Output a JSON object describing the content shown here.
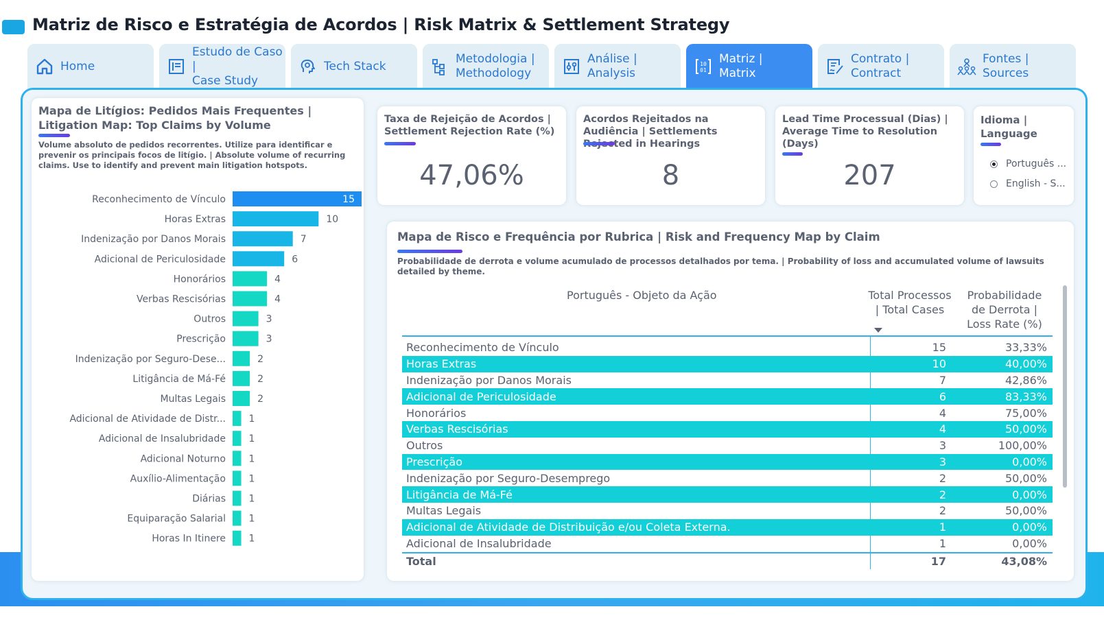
{
  "header": {
    "title": "Matriz de Risco e Estratégia de Acordos | Risk Matrix & Settlement Strategy"
  },
  "tabs": [
    {
      "label": "Home",
      "icon": "home-icon"
    },
    {
      "label": "Estudo de Caso |\nCase Study",
      "icon": "document-icon"
    },
    {
      "label": "Tech Stack",
      "icon": "brain-icon"
    },
    {
      "label": "Metodologia |\nMethodology",
      "icon": "flowchart-icon"
    },
    {
      "label": "Análise |\nAnalysis",
      "icon": "sliders-icon"
    },
    {
      "label": "Matriz |\nMatrix",
      "icon": "matrix-icon",
      "active": true
    },
    {
      "label": "Contrato |\nContract",
      "icon": "contract-icon"
    },
    {
      "label": "Fontes |\nSources",
      "icon": "people-icon"
    }
  ],
  "bar_card": {
    "title": "Mapa de Litígios: Pedidos Mais Frequentes | Litigation Map: Top Claims by Volume",
    "subtitle": "Volume absoluto de pedidos recorrentes. Utilize para identificar e prevenir os principais focos de litígio. | Absolute volume of recurring claims. Use to identify and prevent main litigation hotspots."
  },
  "chart_data": {
    "type": "bar",
    "orientation": "horizontal",
    "categories": [
      "Reconhecimento de Vínculo",
      "Horas Extras",
      "Indenização por Danos Morais",
      "Adicional de Periculosidade",
      "Honorários",
      "Verbas Rescisórias",
      "Outros",
      "Prescrição",
      "Indenização por Seguro-Dese...",
      "Litigância de Má-Fé",
      "Multas Legais",
      "Adicional de Atividade de Distr...",
      "Adicional de Insalubridade",
      "Adicional Noturno",
      "Auxílio-Alimentação",
      "Diárias",
      "Equiparação Salarial",
      "Horas In Itinere"
    ],
    "values": [
      15,
      10,
      7,
      6,
      4,
      4,
      3,
      3,
      2,
      2,
      2,
      1,
      1,
      1,
      1,
      1,
      1,
      1
    ],
    "xlim": [
      0,
      15
    ],
    "colors": {
      "top": "#1e8ff0",
      "high": "#17b6e6",
      "low": "#14d8c4"
    }
  },
  "kpis": [
    {
      "title": "Taxa de Rejeição de Acordos | Settlement Rejection Rate (%)",
      "value": "47,06%"
    },
    {
      "title": "Acordos Rejeitados na Audiência | Settlements Rejected in Hearings",
      "value": "8"
    },
    {
      "title": "Lead Time Processual (Dias) | Average Time to Resolution (Days)",
      "value": "207"
    }
  ],
  "language": {
    "title": "Idioma | Language",
    "options": [
      {
        "label": "Português ...",
        "checked": true
      },
      {
        "label": "English - S...",
        "checked": false
      }
    ]
  },
  "table": {
    "title": "Mapa de Risco e Frequência por Rubrica | Risk and Frequency Map by Claim",
    "subtitle": "Probabilidade de derrota e volume acumulado de processos detalhados por tema. | Probability of loss and accumulated volume of lawsuits detailed by theme.",
    "headers": {
      "object": "Português - Objeto da Ação",
      "total": "Total Processos | Total Cases",
      "prob": "Probabilidade de Derrota | Loss Rate (%)"
    },
    "rows": [
      {
        "name": "Reconhecimento de Vínculo",
        "total": "15",
        "prob": "33,33%",
        "hl": false
      },
      {
        "name": "Horas Extras",
        "total": "10",
        "prob": "40,00%",
        "hl": true
      },
      {
        "name": "Indenização por Danos Morais",
        "total": "7",
        "prob": "42,86%",
        "hl": false
      },
      {
        "name": "Adicional de Periculosidade",
        "total": "6",
        "prob": "83,33%",
        "hl": true
      },
      {
        "name": "Honorários",
        "total": "4",
        "prob": "75,00%",
        "hl": false
      },
      {
        "name": "Verbas Rescisórias",
        "total": "4",
        "prob": "50,00%",
        "hl": true
      },
      {
        "name": "Outros",
        "total": "3",
        "prob": "100,00%",
        "hl": false
      },
      {
        "name": "Prescrição",
        "total": "3",
        "prob": "0,00%",
        "hl": true
      },
      {
        "name": "Indenização por Seguro-Desemprego",
        "total": "2",
        "prob": "50,00%",
        "hl": false
      },
      {
        "name": "Litigância de Má-Fé",
        "total": "2",
        "prob": "0,00%",
        "hl": true
      },
      {
        "name": "Multas Legais",
        "total": "2",
        "prob": "50,00%",
        "hl": false
      },
      {
        "name": "Adicional de Atividade de Distribuição e/ou Coleta Externa.",
        "total": "1",
        "prob": "0,00%",
        "hl": true
      },
      {
        "name": "Adicional de Insalubridade",
        "total": "1",
        "prob": "0,00%",
        "hl": false
      }
    ],
    "total": {
      "label": "Total",
      "total": "17",
      "prob": "43,08%"
    }
  }
}
